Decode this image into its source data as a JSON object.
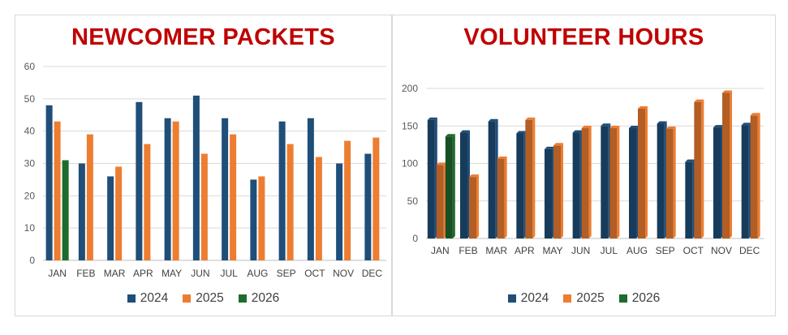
{
  "colors": {
    "title": "#c00000",
    "y2024": "#1f4e79",
    "y2025": "#ed7d31",
    "y2026": "#1e6b2e"
  },
  "chart_data": [
    {
      "type": "bar",
      "title": "NEWCOMER PACKETS",
      "categories": [
        "JAN",
        "FEB",
        "MAR",
        "APR",
        "MAY",
        "JUN",
        "JUL",
        "AUG",
        "SEP",
        "OCT",
        "NOV",
        "DEC"
      ],
      "series": [
        {
          "name": "2024",
          "values": [
            48,
            30,
            26,
            49,
            44,
            51,
            44,
            25,
            43,
            44,
            30,
            33
          ]
        },
        {
          "name": "2025",
          "values": [
            43,
            39,
            29,
            36,
            43,
            33,
            39,
            26,
            36,
            32,
            37,
            38
          ]
        },
        {
          "name": "2026",
          "values": [
            31,
            null,
            null,
            null,
            null,
            null,
            null,
            null,
            null,
            null,
            null,
            null
          ]
        }
      ],
      "ylim": [
        0,
        60
      ],
      "yticks": [
        0,
        10,
        20,
        30,
        40,
        50,
        60
      ],
      "xlabel": "",
      "ylabel": "",
      "legend": "bottom",
      "grid": true,
      "style": "flat"
    },
    {
      "type": "bar",
      "title": "VOLUNTEER HOURS",
      "categories": [
        "JAN",
        "FEB",
        "MAR",
        "APR",
        "MAY",
        "JUN",
        "JUL",
        "AUG",
        "SEP",
        "OCT",
        "NOV",
        "DEC"
      ],
      "series": [
        {
          "name": "2024",
          "values": [
            158,
            141,
            156,
            140,
            119,
            141,
            150,
            147,
            153,
            102,
            148,
            151
          ]
        },
        {
          "name": "2025",
          "values": [
            98,
            82,
            106,
            158,
            124,
            147,
            147,
            173,
            146,
            182,
            194,
            164
          ]
        },
        {
          "name": "2026",
          "values": [
            136,
            null,
            null,
            null,
            null,
            null,
            null,
            null,
            null,
            null,
            null,
            null
          ]
        }
      ],
      "ylim": [
        0,
        200
      ],
      "yticks": [
        0,
        50,
        100,
        150,
        200
      ],
      "xlabel": "",
      "ylabel": "",
      "legend": "bottom",
      "grid": true,
      "style": "3d"
    }
  ]
}
